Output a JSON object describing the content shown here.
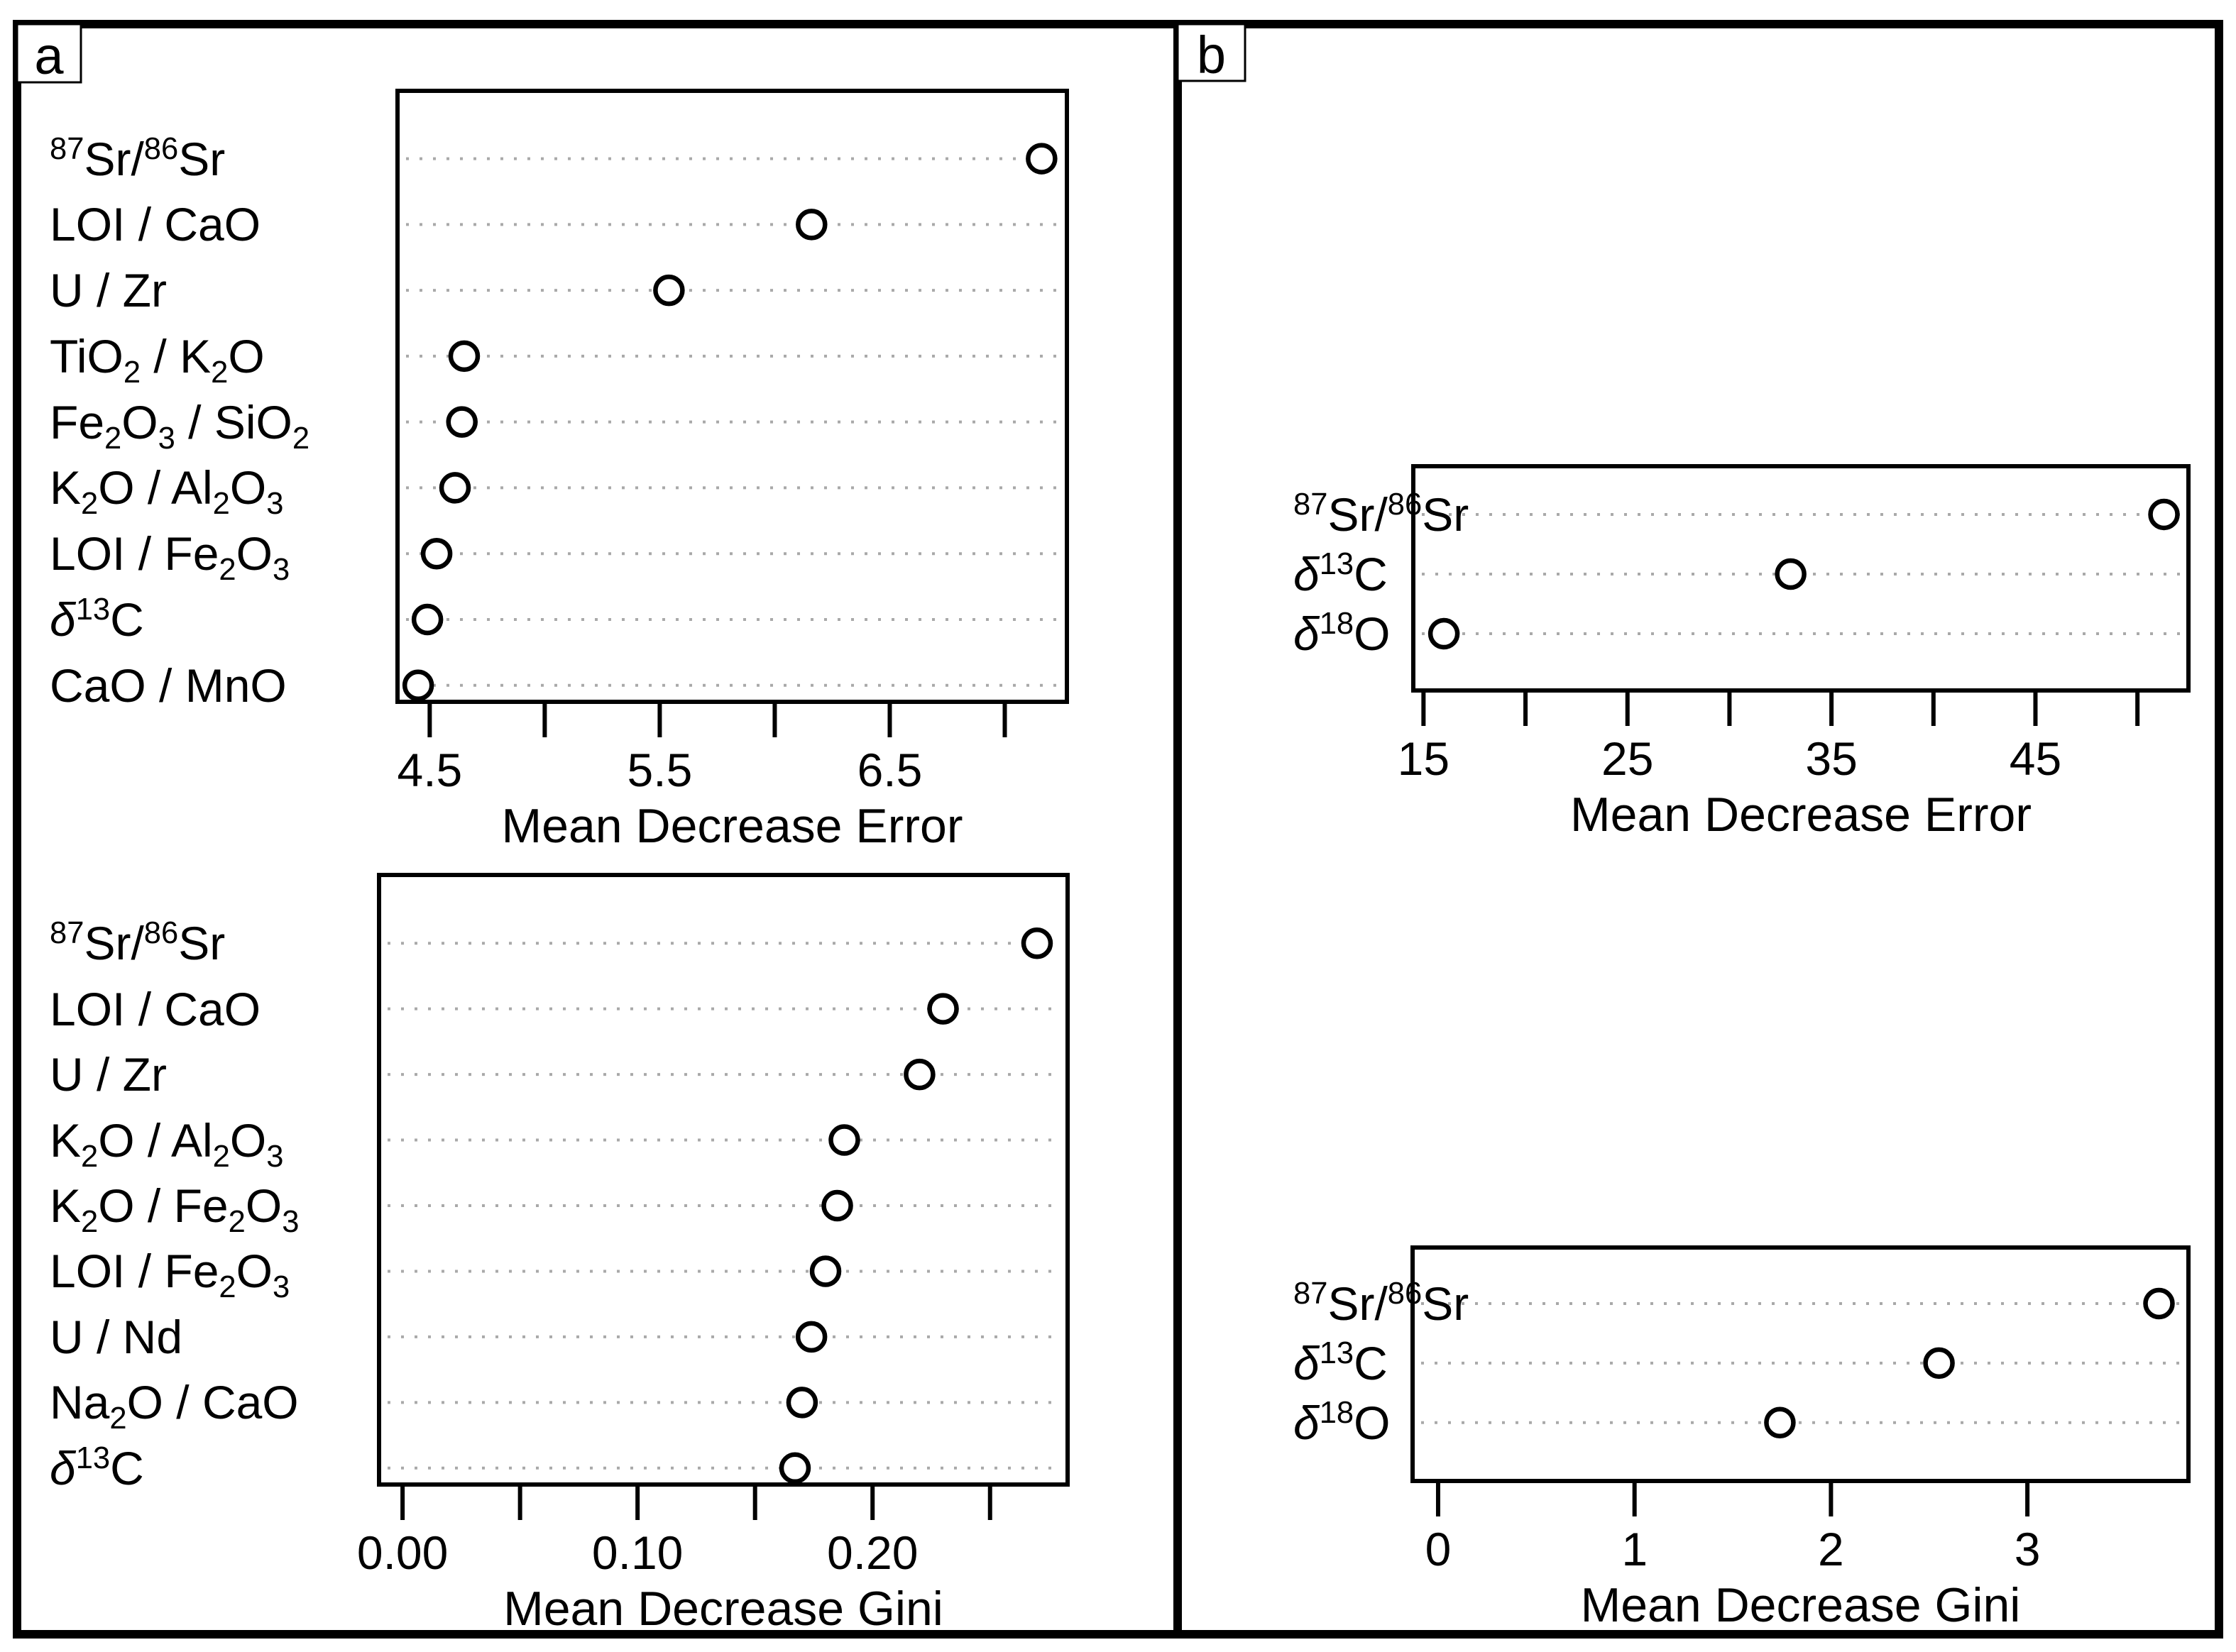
{
  "figure": {
    "panel_tags": [
      "a",
      "b"
    ]
  },
  "colors": {
    "ink": "#000000",
    "grid_dots": "#a9a9a9",
    "background": "#ffffff",
    "point_fill": "#ffffff"
  },
  "chart_data": [
    {
      "id": "a-top",
      "panel": "a",
      "type": "scatter",
      "title": "",
      "xlabel": "Mean Decrease Error",
      "ylabel": "",
      "marker": "open-circle",
      "grid": "dotted-horizontal-rows",
      "legend": null,
      "categories": [
        "^87^Sr/^86^Sr",
        "LOI / CaO",
        "U / Zr",
        "TiO_2_ / K_2_O",
        "Fe_2_O_3_ / SiO_2_",
        "K_2_O / Al_2_O_3_",
        "LOI / Fe_2_O_3_",
        "*δ*^13^C",
        "CaO / MnO"
      ],
      "values": [
        7.16,
        6.16,
        5.54,
        4.65,
        4.64,
        4.61,
        4.53,
        4.49,
        4.45
      ],
      "xlim": [
        4.36,
        7.27
      ],
      "xticks": [
        4.5,
        5.0,
        5.5,
        6.0,
        6.5,
        7.0
      ],
      "xtick_labels": [
        "4.5",
        "",
        "5.5",
        "",
        "6.5",
        ""
      ]
    },
    {
      "id": "a-bottom",
      "panel": "a",
      "type": "scatter",
      "title": "",
      "xlabel": "Mean Decrease Gini",
      "ylabel": "",
      "marker": "open-circle",
      "grid": "dotted-horizontal-rows",
      "legend": null,
      "categories": [
        "^87^Sr/^86^Sr",
        "LOI / CaO",
        "U / Zr",
        "K_2_O / Al_2_O_3_",
        "K_2_O / Fe_2_O_3_",
        "LOI / Fe_2_O_3_",
        "U / Nd",
        "Na_2_O / CaO",
        "*δ*^13^C"
      ],
      "values": [
        0.27,
        0.23,
        0.22,
        0.188,
        0.185,
        0.18,
        0.174,
        0.17,
        0.167
      ],
      "xlim": [
        -0.01,
        0.283
      ],
      "xticks": [
        0.0,
        0.05,
        0.1,
        0.15,
        0.2,
        0.25
      ],
      "xtick_labels": [
        "0.00",
        "",
        "0.10",
        "",
        "0.20",
        ""
      ]
    },
    {
      "id": "b-top",
      "panel": "b",
      "type": "scatter",
      "title": "",
      "xlabel": "Mean Decrease Error",
      "ylabel": "",
      "marker": "open-circle",
      "grid": "dotted-horizontal-rows",
      "legend": null,
      "categories": [
        "^87^Sr/^86^Sr",
        "*δ*^13^C",
        "*δ*^18^O"
      ],
      "values": [
        51.3,
        33.0,
        16.0
      ],
      "xlim": [
        14.5,
        52.5
      ],
      "xticks": [
        15,
        20,
        25,
        30,
        35,
        40,
        45,
        50
      ],
      "xtick_labels": [
        "15",
        "",
        "25",
        "",
        "35",
        "",
        "45",
        ""
      ]
    },
    {
      "id": "b-bottom",
      "panel": "b",
      "type": "scatter",
      "title": "",
      "xlabel": "Mean Decrease Gini",
      "ylabel": "",
      "marker": "open-circle",
      "grid": "dotted-horizontal-rows",
      "legend": null,
      "categories": [
        "^87^Sr/^86^Sr",
        "*δ*^13^C",
        "*δ*^18^O"
      ],
      "values": [
        3.67,
        2.55,
        1.74
      ],
      "xlim": [
        -0.13,
        3.82
      ],
      "xticks": [
        0,
        1,
        2,
        3
      ],
      "xtick_labels": [
        "0",
        "1",
        "2",
        "3"
      ]
    }
  ]
}
